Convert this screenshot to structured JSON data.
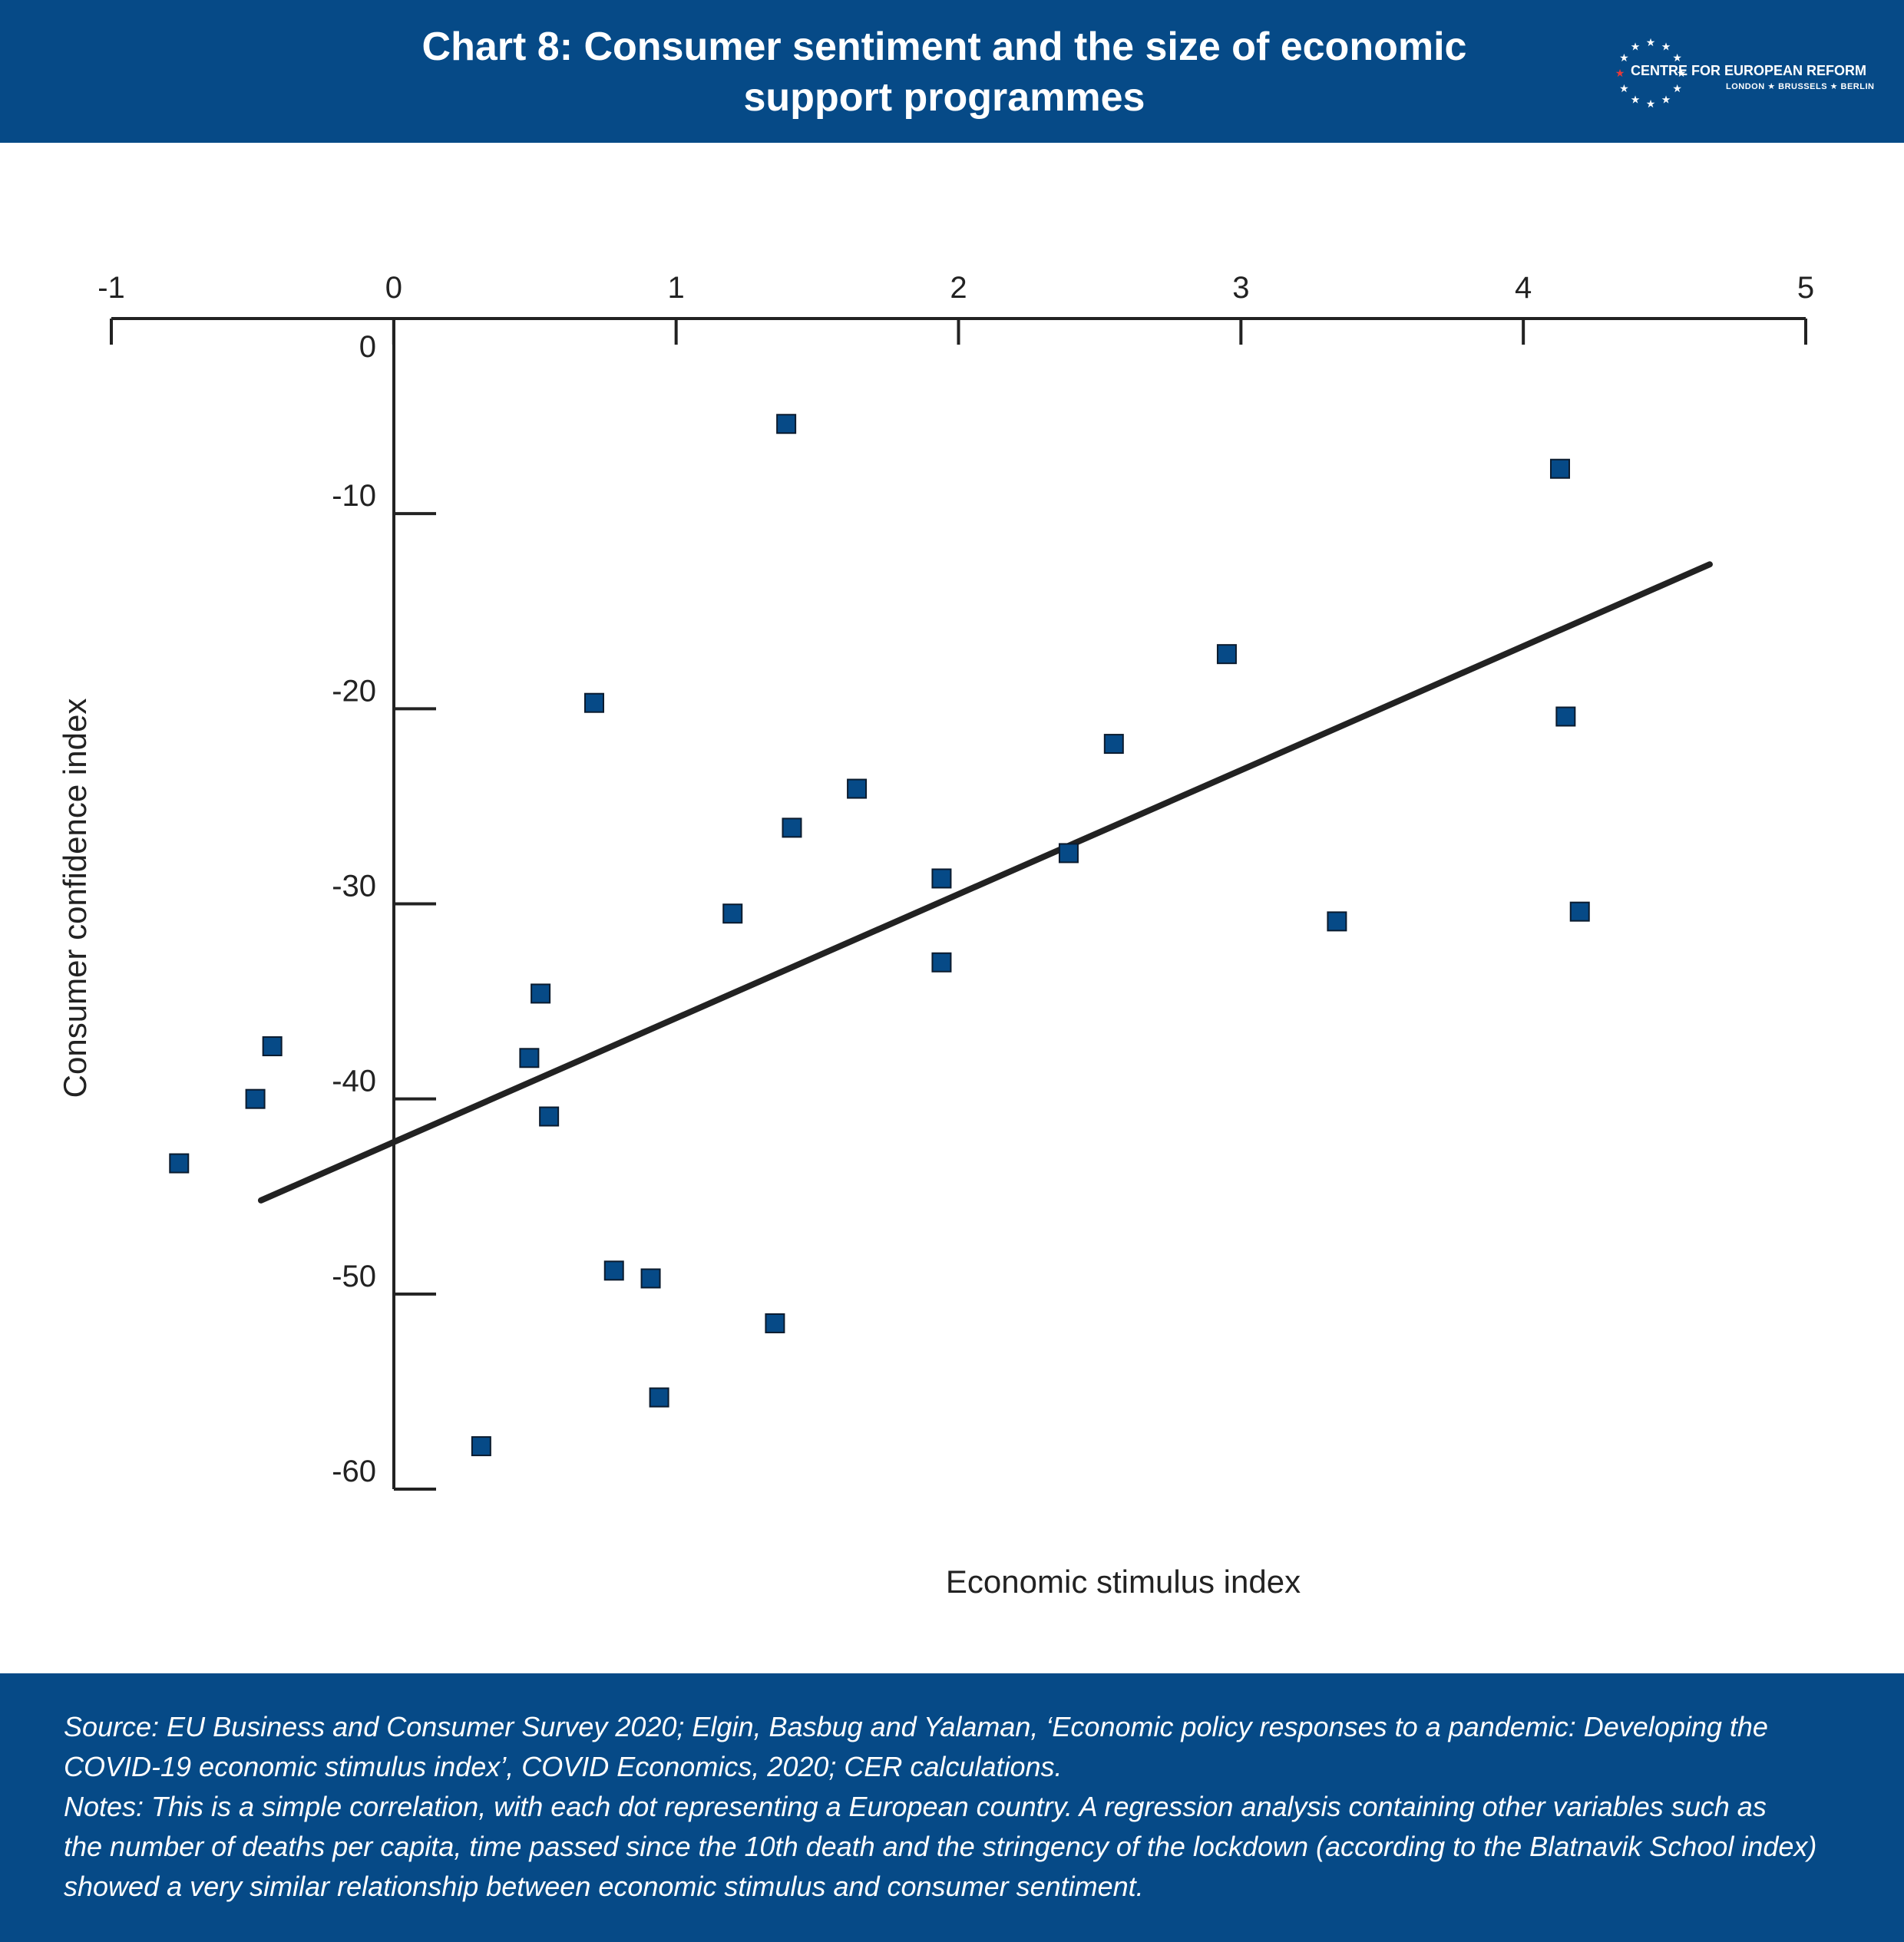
{
  "header": {
    "title": "Chart 8: Consumer sentiment and the size of economic\nsupport programmes",
    "logo_name": "CENTRE FOR EUROPEAN REFORM",
    "logo_cities": "LONDON ★ BRUSSELS ★ BERLIN",
    "logo_icon": "eu-star-circle-icon"
  },
  "colors": {
    "header_bg": "#064a87",
    "marker_fill": "#064a87",
    "marker_stroke": "#0b1b2e",
    "axis": "#222222",
    "trendline": "#222222",
    "star_accent": "#e63a3a"
  },
  "chart_data": {
    "type": "scatter",
    "title": "Chart 8: Consumer sentiment and the size of economic support programmes",
    "xlabel": "Economic stimulus index",
    "ylabel": "Consumer confidence index",
    "xlim": [
      -1,
      5
    ],
    "ylim": [
      -60,
      0
    ],
    "x_axis_position": "top",
    "x_ticks": [
      -1,
      0,
      1,
      2,
      3,
      4,
      5
    ],
    "y_ticks": [
      0,
      -10,
      -20,
      -30,
      -40,
      -50,
      -60
    ],
    "x_tick_labels": [
      "-1",
      "0",
      "1",
      "2",
      "3",
      "4",
      "5"
    ],
    "y_tick_labels": [
      "0",
      "-10",
      "-20",
      "-30",
      "-40",
      "-50",
      "-60"
    ],
    "grid": false,
    "legend": "none",
    "points": [
      {
        "x": -0.76,
        "y": -43.3
      },
      {
        "x": -0.49,
        "y": -40.0
      },
      {
        "x": -0.43,
        "y": -37.3
      },
      {
        "x": 0.31,
        "y": -57.8
      },
      {
        "x": 0.48,
        "y": -37.9
      },
      {
        "x": 0.52,
        "y": -34.6
      },
      {
        "x": 0.55,
        "y": -40.9
      },
      {
        "x": 0.71,
        "y": -19.7
      },
      {
        "x": 0.78,
        "y": -48.8
      },
      {
        "x": 0.91,
        "y": -49.2
      },
      {
        "x": 0.94,
        "y": -55.3
      },
      {
        "x": 1.2,
        "y": -30.5
      },
      {
        "x": 1.35,
        "y": -51.5
      },
      {
        "x": 1.39,
        "y": -5.4
      },
      {
        "x": 1.41,
        "y": -26.1
      },
      {
        "x": 1.64,
        "y": -24.1
      },
      {
        "x": 1.94,
        "y": -28.7
      },
      {
        "x": 1.94,
        "y": -33.0
      },
      {
        "x": 2.39,
        "y": -27.4
      },
      {
        "x": 2.55,
        "y": -21.8
      },
      {
        "x": 2.95,
        "y": -17.2
      },
      {
        "x": 3.34,
        "y": -30.9
      },
      {
        "x": 4.13,
        "y": -7.7
      },
      {
        "x": 4.15,
        "y": -20.4
      },
      {
        "x": 4.2,
        "y": -30.4
      }
    ],
    "trendline": {
      "x": [
        -0.47,
        4.66
      ],
      "y": [
        -45.2,
        -12.6
      ]
    }
  },
  "footer": {
    "source": "Source: EU Business and Consumer Survey 2020; Elgin, Basbug and Yalaman, ‘Economic policy responses to a pandemic: Developing the\nCOVID-19 economic stimulus index’, COVID Economics, 2020; CER calculations.",
    "notes": "Notes: This is a simple correlation, with each dot representing a European country. A regression analysis containing other variables such as\nthe number of deaths per capita, time passed since the 10th death and the stringency of the lockdown (according to the Blatnavik School index)\nshowed a very similar relationship between economic stimulus and consumer sentiment."
  }
}
